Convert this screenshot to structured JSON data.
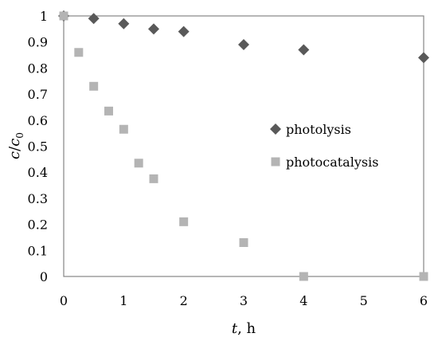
{
  "chart_data": {
    "type": "scatter",
    "xlabel": {
      "var": "t",
      "rest": ", h"
    },
    "ylabel": {
      "c": "c",
      "slash": "/",
      "c0": "c",
      "sub": "0"
    },
    "xlim": [
      0,
      6
    ],
    "ylim": [
      0,
      1
    ],
    "x_ticks": [
      0,
      1,
      2,
      3,
      4,
      5,
      6
    ],
    "y_ticks": [
      {
        "value": 0,
        "label": "0"
      },
      {
        "value": 0.1,
        "label": "0.1"
      },
      {
        "value": 0.2,
        "label": "0.2"
      },
      {
        "value": 0.3,
        "label": "0.3"
      },
      {
        "value": 0.4,
        "label": "0.4"
      },
      {
        "value": 0.5,
        "label": "0.5"
      },
      {
        "value": 0.6,
        "label": "0.6"
      },
      {
        "value": 0.7,
        "label": "0.7"
      },
      {
        "value": 0.8,
        "label": "0.8"
      },
      {
        "value": 0.9,
        "label": "0.9"
      },
      {
        "value": 1,
        "label": "1"
      }
    ],
    "grid": false,
    "legend_position": "right-middle",
    "series": [
      {
        "name": "photolysis",
        "marker": "diamond",
        "color": "#595959",
        "points": [
          {
            "x": 0,
            "y": 1.0
          },
          {
            "x": 0.5,
            "y": 0.99
          },
          {
            "x": 1,
            "y": 0.97
          },
          {
            "x": 1.5,
            "y": 0.95
          },
          {
            "x": 2,
            "y": 0.94
          },
          {
            "x": 3,
            "y": 0.89
          },
          {
            "x": 4,
            "y": 0.87
          },
          {
            "x": 6,
            "y": 0.84
          }
        ]
      },
      {
        "name": "photocatalysis",
        "marker": "square",
        "color": "#b4b4b4",
        "points": [
          {
            "x": 0,
            "y": 1.0
          },
          {
            "x": 0.25,
            "y": 0.86
          },
          {
            "x": 0.5,
            "y": 0.73
          },
          {
            "x": 0.75,
            "y": 0.635
          },
          {
            "x": 1,
            "y": 0.565
          },
          {
            "x": 1.25,
            "y": 0.435
          },
          {
            "x": 1.5,
            "y": 0.375
          },
          {
            "x": 2,
            "y": 0.21
          },
          {
            "x": 3,
            "y": 0.13
          },
          {
            "x": 4,
            "y": 0.0
          },
          {
            "x": 6,
            "y": 0.0
          }
        ]
      }
    ]
  }
}
